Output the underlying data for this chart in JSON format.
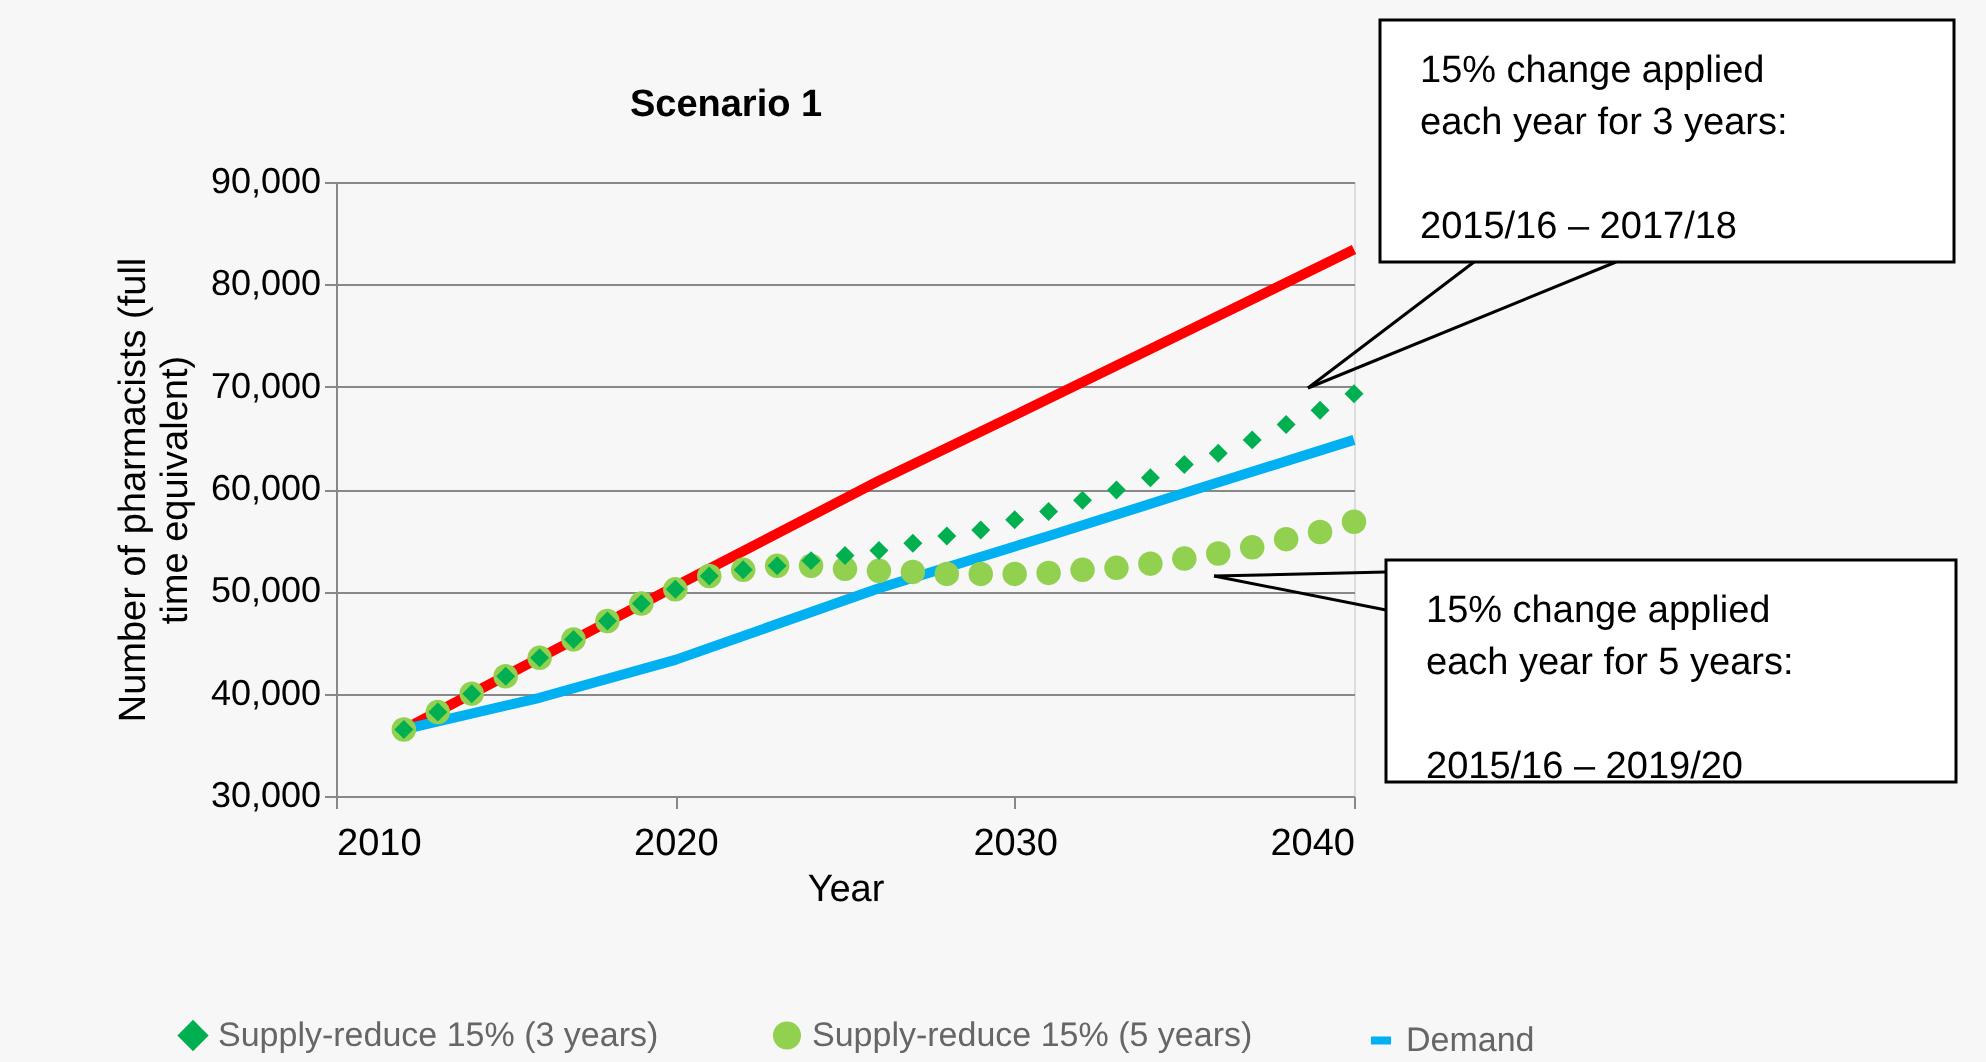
{
  "chart_data": {
    "type": "line",
    "title": "Scenario 1",
    "xlabel": "Year",
    "ylabel": "Number of pharmacists (full time equivalent)",
    "xlim": [
      2010,
      2040
    ],
    "xticks": [
      2010,
      2020,
      2030,
      2040
    ],
    "ylim": [
      30000,
      90000
    ],
    "yticks": [
      {
        "value": 30000,
        "label": "30,000"
      },
      {
        "value": 40000,
        "label": "40,000"
      },
      {
        "value": 50000,
        "label": "50,000"
      },
      {
        "value": 60000,
        "label": "60,000"
      },
      {
        "value": 70000,
        "label": "70,000"
      },
      {
        "value": 80000,
        "label": "80,000"
      },
      {
        "value": 90000,
        "label": "90,000"
      }
    ],
    "grid": "y",
    "legend": "bottom",
    "line_style": "solid",
    "series": [
      {
        "color": "#ff0000",
        "x": [
          2012,
          2016,
          2020,
          2026,
          2030,
          2035,
          2040
        ],
        "values": [
          36500,
          43500,
          50500,
          60800,
          67200,
          75300,
          83400
        ]
      },
      {
        "name": "Demand",
        "color": "#00b0f0",
        "x": [
          2012,
          2016,
          2020,
          2026,
          2031,
          2035,
          2040
        ],
        "values": [
          36500,
          39600,
          43300,
          50300,
          55400,
          59600,
          64800
        ]
      },
      {
        "type": "scatter",
        "name": "Supply-reduce 15% (5 years)",
        "marker": "circle",
        "color": "#92d050",
        "x": [
          2012,
          2013,
          2014,
          2015,
          2016,
          2017,
          2018,
          2019,
          2020,
          2021,
          2022,
          2023,
          2024,
          2025,
          2026,
          2027,
          2028,
          2029,
          2030,
          2031,
          2032,
          2033,
          2034,
          2035,
          2036,
          2037,
          2038,
          2039,
          2040
        ],
        "values": [
          36500,
          38200,
          40000,
          41700,
          43500,
          45300,
          47100,
          48800,
          50200,
          51500,
          52100,
          52500,
          52500,
          52200,
          52000,
          51900,
          51700,
          51700,
          51700,
          51800,
          52100,
          52300,
          52700,
          53200,
          53700,
          54300,
          55100,
          55800,
          56800
        ]
      },
      {
        "type": "scatter",
        "name": "Supply-reduce 15% (3 years)",
        "marker": "diamond",
        "color": "#00b050",
        "x": [
          2012,
          2013,
          2014,
          2015,
          2016,
          2017,
          2018,
          2019,
          2020,
          2021,
          2022,
          2023,
          2024,
          2025,
          2026,
          2027,
          2028,
          2029,
          2030,
          2031,
          2032,
          2033,
          2034,
          2035,
          2036,
          2037,
          2038,
          2039,
          2040
        ],
        "values": [
          36500,
          38200,
          40000,
          41700,
          43500,
          45300,
          47100,
          48800,
          50200,
          51500,
          52100,
          52500,
          53000,
          53500,
          54000,
          54700,
          55400,
          56000,
          57000,
          57800,
          58900,
          59900,
          61100,
          62400,
          63500,
          64800,
          66300,
          67700,
          69300
        ]
      }
    ],
    "annotations": [
      "15% change applied\neach year for 3 years:\n\n2015/16 – 2017/18",
      "15% change applied\neach year for 5 years:\n\n2015/16 – 2019/20"
    ]
  }
}
